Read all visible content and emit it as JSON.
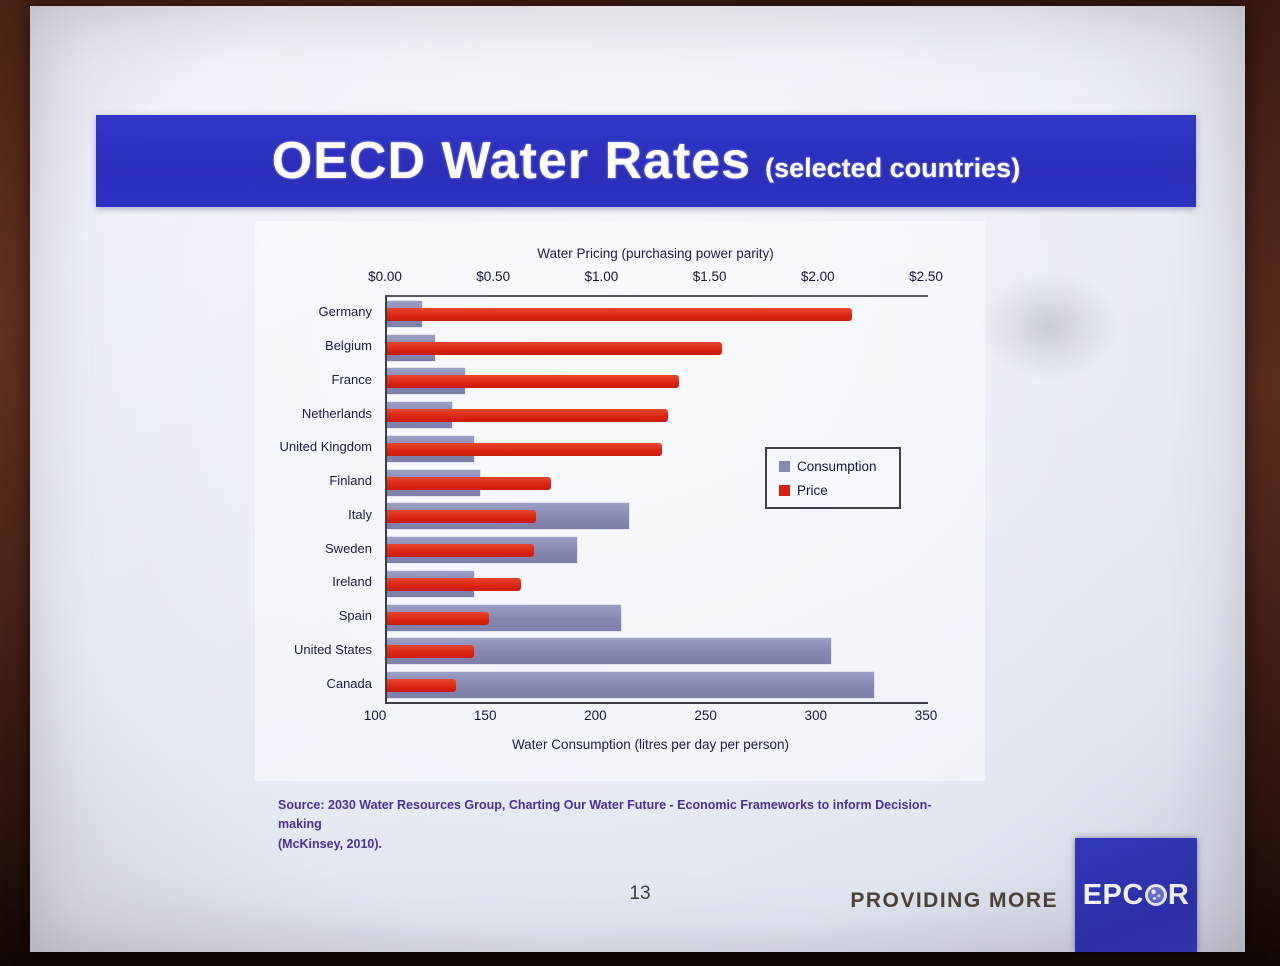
{
  "slide": {
    "banner": {
      "title": "OECD Water Rates",
      "subtitle": "(selected countries)"
    },
    "source": {
      "line1": "Source: 2030 Water Resources Group, Charting Our Water Future - Economic Frameworks to inform Decision-making",
      "line2": "(McKinsey, 2010)."
    },
    "footer": {
      "page_number": "13",
      "tagline": "PROVIDING MORE",
      "logo_name": "EPCOR",
      "logo_text_left": "EPC",
      "logo_text_right": "R"
    },
    "colors": {
      "banner_blue": "#2c30c0",
      "logo_blue": "#2c31b6",
      "consumption_bar": "#8789b2",
      "price_bar": "#d8200e",
      "source_text": "#4c2f9e",
      "slide_background": "#e8ecf4"
    }
  },
  "chart_data": {
    "type": "bar",
    "orientation": "horizontal",
    "top_axis": {
      "title": "Water Pricing (purchasing power parity)",
      "ticks": [
        "$0.00",
        "$0.50",
        "$1.00",
        "$1.50",
        "$2.00",
        "$2.50"
      ],
      "min": 0,
      "max": 2.5
    },
    "bottom_axis": {
      "title": "Water Consumption (litres per day per person)",
      "ticks": [
        "100",
        "150",
        "200",
        "250",
        "300",
        "350"
      ],
      "min": 100,
      "max": 350
    },
    "legend_position": "middle-right",
    "grid": false,
    "categories": [
      "Germany",
      "Belgium",
      "France",
      "Netherlands",
      "United Kingdom",
      "Finland",
      "Italy",
      "Sweden",
      "Ireland",
      "Spain",
      "United States",
      "Canada"
    ],
    "series": [
      {
        "name": "Consumption",
        "axis": "bottom",
        "color": "#8789b2",
        "values": [
          116,
          122,
          136,
          130,
          140,
          143,
          212,
          188,
          140,
          208,
          305,
          325
        ]
      },
      {
        "name": "Price",
        "axis": "top",
        "color": "#d8200e",
        "values": [
          2.15,
          1.55,
          1.35,
          1.3,
          1.27,
          0.76,
          0.69,
          0.68,
          0.62,
          0.47,
          0.4,
          0.32
        ]
      }
    ]
  }
}
